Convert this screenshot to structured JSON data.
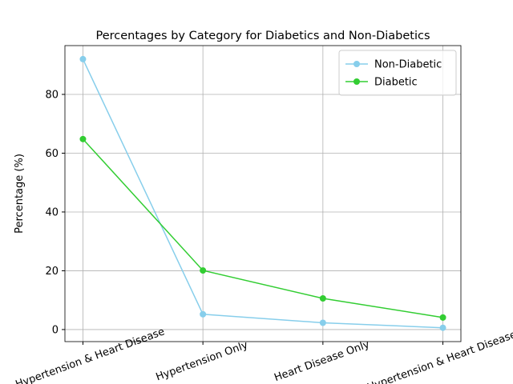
{
  "chart_data": {
    "type": "line",
    "title": "Percentages by Category for Diabetics and Non-Diabetics",
    "y_label": "Percentage (%)",
    "categories": [
      "No Hypertension & Heart Disease",
      "Hypertension Only",
      "Heart Disease Only",
      "Hypertension & Heart Disease"
    ],
    "series": [
      {
        "name": "Non-Diabetic",
        "color": "#87ceeb",
        "values": [
          92.0,
          5.2,
          2.3,
          0.6
        ]
      },
      {
        "name": "Diabetic",
        "color": "#32cd32",
        "values": [
          64.8,
          20.1,
          10.6,
          4.1
        ]
      }
    ],
    "ylim": [
      -4.1,
      96.6
    ],
    "yticks": [
      0,
      20,
      40,
      60,
      80
    ],
    "grid": true,
    "legend": "upper right"
  }
}
